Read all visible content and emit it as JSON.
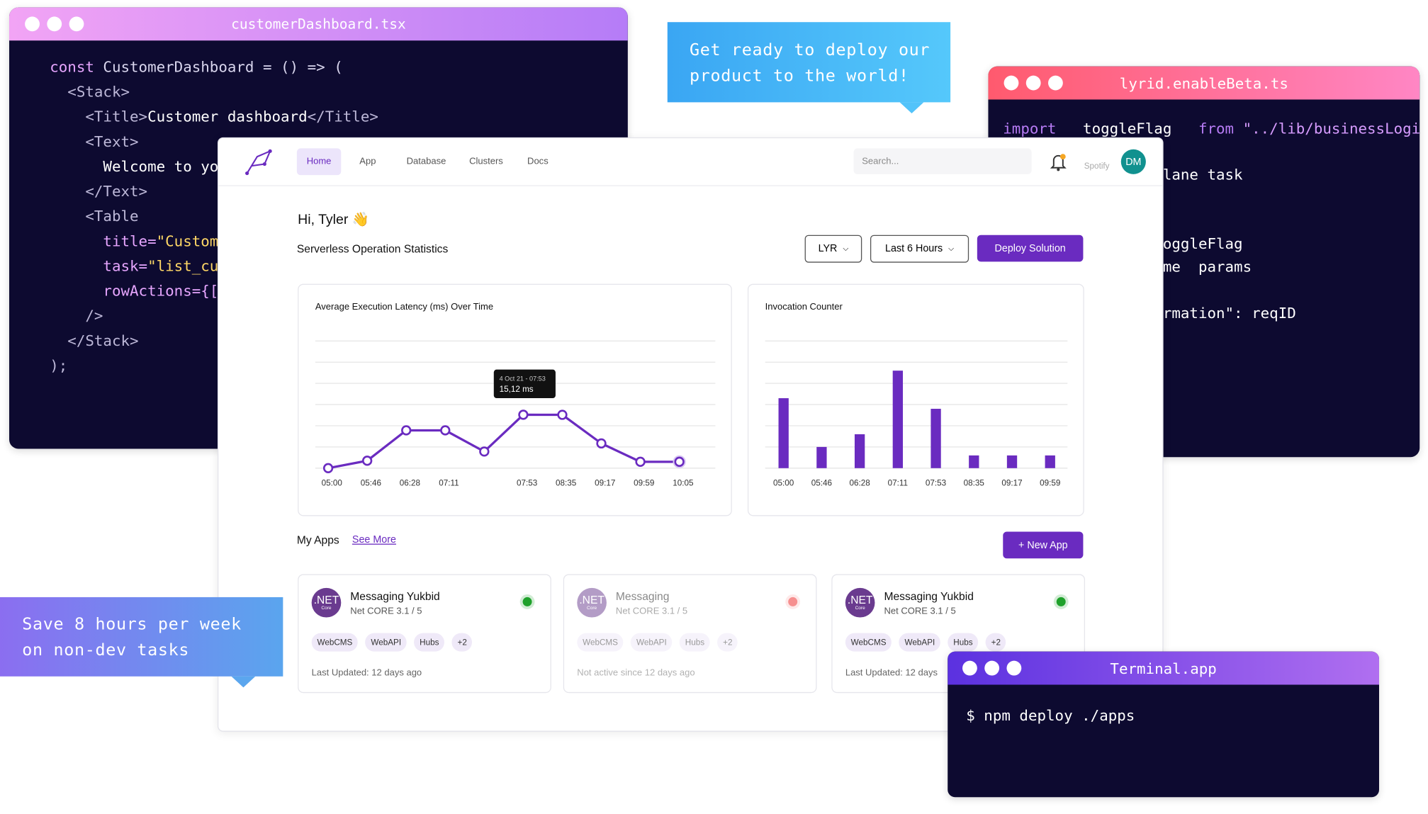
{
  "editor_left": {
    "title": "customerDashboard.tsx",
    "lines": [
      [
        {
          "text": "const",
          "color": "#e7a6ff"
        },
        {
          "text": " CustomerDashboard = () => (",
          "color": "#d9d6ee"
        }
      ],
      [
        {
          "text": "  <Stack>",
          "color": "#bdb8d8"
        }
      ],
      [
        {
          "text": "    <Title>",
          "color": "#bdb8d8"
        },
        {
          "text": "Customer dashboard",
          "color": "#ffffff"
        },
        {
          "text": "</Title>",
          "color": "#bdb8d8"
        }
      ],
      [
        {
          "text": "    <Text>",
          "color": "#bdb8d8"
        }
      ],
      [
        {
          "text": "      Welcome to yo",
          "color": "#ffffff"
        }
      ],
      [
        {
          "text": "    </Text>",
          "color": "#bdb8d8"
        }
      ],
      [
        {
          "text": "    <Table",
          "color": "#bdb8d8"
        }
      ],
      [
        {
          "text": "      title=",
          "color": "#e7a6ff"
        },
        {
          "text": "\"Custom",
          "color": "#ffd866"
        }
      ],
      [
        {
          "text": "      task=",
          "color": "#e7a6ff"
        },
        {
          "text": "\"list_cu",
          "color": "#ffd866"
        }
      ],
      [
        {
          "text": "      rowActions={[",
          "color": "#e7a6ff"
        }
      ],
      [
        {
          "text": "    />",
          "color": "#bdb8d8"
        }
      ],
      [
        {
          "text": "  </Stack>",
          "color": "#bdb8d8"
        }
      ],
      [
        {
          "text": ");",
          "color": "#bdb8d8"
        }
      ]
    ]
  },
  "editor_right": {
    "title": "lyrid.enableBeta.ts",
    "lines": [
      [
        {
          "text": "import",
          "color": "#b77cf5"
        },
        {
          "text": "   toggleFlag   ",
          "color": "#ffffff"
        },
        {
          "text": "from",
          "color": "#b77cf5"
        },
        {
          "text": " \"../lib/businessLogic\"",
          "color": "#d79cff"
        }
      ],
      [],
      [
        {
          "text": "                  lane task",
          "color": "#ffffff"
        }
      ],
      [],
      [],
      [
        {
          "text": "                  oggleFlag",
          "color": "#ffffff"
        }
      ],
      [
        {
          "text": "                  me  params",
          "color": "#ffffff"
        }
      ],
      [],
      [
        {
          "text": "                  rmation\": reqID",
          "color": "#ffffff"
        }
      ]
    ]
  },
  "bubble_top": {
    "lines": [
      "Get ready to deploy our",
      "product to the world!"
    ]
  },
  "bubble_left": {
    "lines": [
      "Save 8 hours per week",
      "on non-dev tasks"
    ]
  },
  "terminal": {
    "title": "Terminal.app",
    "command": "$ npm deploy ./apps"
  },
  "dashboard": {
    "nav": [
      "Home",
      "App",
      "Database",
      "Clusters",
      "Docs"
    ],
    "search_placeholder": "Search...",
    "org": "Spotify",
    "avatar": "DM",
    "greeting": "Hi, Tyler 👋",
    "section_title": "Serverless Operation Statistics",
    "filter_region": "LYR",
    "filter_time": "Last 6 Hours",
    "deploy_button": "Deploy Solution",
    "apps_title": "My Apps",
    "see_more": "See More",
    "new_app": "+ New App",
    "apps": [
      {
        "icon": ".NET",
        "icon_sub": "Core",
        "name": "Messaging Yukbid",
        "subtitle": "Net CORE 3.1 / 5",
        "status_color": "#1fa12b",
        "tags": [
          "WebCMS",
          "WebAPI",
          "Hubs",
          "+2"
        ],
        "footer": "Last Updated: 12 days ago",
        "active": true
      },
      {
        "icon": ".NET",
        "icon_sub": "Core",
        "name": "Messaging",
        "subtitle": "Net CORE 3.1 / 5",
        "status_color": "#ee2222",
        "tags": [
          "WebCMS",
          "WebAPI",
          "Hubs",
          "+2"
        ],
        "footer": "Not active since 12 days ago",
        "active": false
      },
      {
        "icon": ".NET",
        "icon_sub": "Core",
        "name": "Messaging Yukbid",
        "subtitle": "Net CORE 3.1 / 5",
        "status_color": "#1fa12b",
        "tags": [
          "WebCMS",
          "WebAPI",
          "Hubs",
          "+2"
        ],
        "footer": "Last Updated: 12 days",
        "active": true
      }
    ]
  },
  "chart_data": [
    {
      "type": "line",
      "title": "Average Execution Latency (ms) Over Time",
      "categories": [
        "05:00",
        "05:46",
        "06:28",
        "07:11",
        null,
        "07:53",
        "08:35",
        "09:17",
        "09:59",
        "10:05"
      ],
      "values": [
        0,
        2.1,
        10.7,
        10.7,
        4.7,
        15.12,
        15.1,
        7.0,
        1.8,
        1.8
      ],
      "color": "#6a2bc0",
      "ylim": [
        0,
        36
      ],
      "yticks": [
        0,
        6,
        12,
        18,
        24,
        30,
        36
      ],
      "grid": true,
      "tooltip": {
        "title": "4 Oct 21 - 07:53",
        "text": "15,12 ms"
      }
    },
    {
      "type": "bar",
      "title": "Invocation Counter",
      "categories": [
        "05:00",
        "05:46",
        "06:28",
        "07:11",
        "07:53",
        "08:35",
        "09:17",
        "09:59"
      ],
      "values": [
        3.3,
        1.0,
        1.6,
        4.6,
        2.8,
        0.6,
        0.6,
        0.6
      ],
      "color": "#6a2bc0",
      "ylim": [
        0,
        6
      ],
      "yticks": [
        0,
        1,
        2,
        3,
        4,
        5,
        6
      ],
      "grid": true
    }
  ]
}
